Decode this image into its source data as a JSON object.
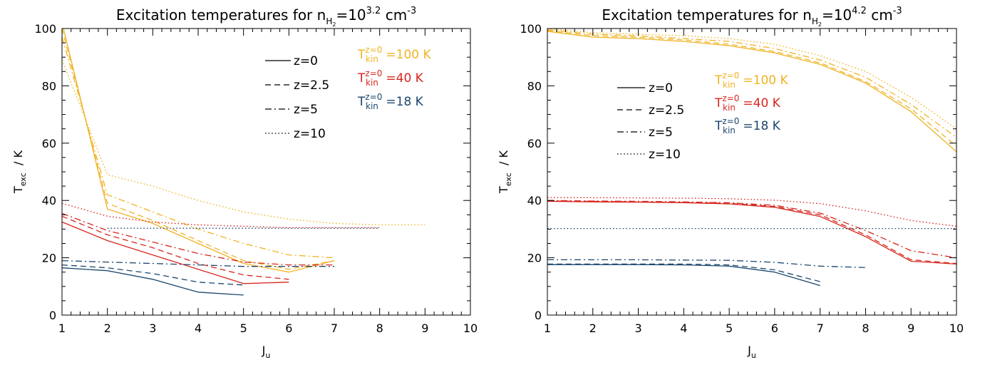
{
  "colors": {
    "T100": "#f0b323",
    "T40": "#d7261e",
    "T18": "#1c476e",
    "axis": "#000000"
  },
  "chart_data": [
    {
      "type": "line",
      "title": {
        "main": "Excitation temperatures for n",
        "sub": "H",
        "subsub": "2",
        "mid": "=10",
        "exp": "3.2",
        "unit": "cm",
        "unitexp": "-3"
      },
      "xlabel": {
        "main": "J",
        "sub": "u"
      },
      "ylabel": {
        "main": "T",
        "sub": "exc",
        "unit": "/ K"
      },
      "xlim": [
        1,
        10
      ],
      "ylim": [
        0,
        100
      ],
      "xticks": [
        "1",
        "2",
        "3",
        "4",
        "5",
        "6",
        "7",
        "8",
        "9",
        "10"
      ],
      "yticks": [
        "0",
        "20",
        "40",
        "60",
        "80",
        "100"
      ],
      "line_styles": [
        {
          "label": "z=0",
          "style": "solid"
        },
        {
          "label": "z=2.5",
          "style": "dashed"
        },
        {
          "label": "z=5",
          "style": "dashdot"
        },
        {
          "label": "z=10",
          "style": "dotted"
        }
      ],
      "kinetic_temperatures": [
        {
          "label": "T",
          "sub": "kin",
          "sup": "z=0",
          "value": "=100 K",
          "color_key": "T100"
        },
        {
          "label": "T",
          "sub": "kin",
          "sup": "z=0",
          "value": "=40 K",
          "color_key": "T40"
        },
        {
          "label": "T",
          "sub": "kin",
          "sup": "z=0",
          "value": "=18 K",
          "color_key": "T18"
        }
      ],
      "series": [
        {
          "tkin": 100,
          "z": 0,
          "style": "solid",
          "color_key": "T100",
          "x": [
            1,
            2,
            3,
            4,
            5,
            6,
            7
          ],
          "y": [
            102,
            37,
            32,
            25,
            18,
            15,
            19
          ]
        },
        {
          "tkin": 100,
          "z": 2.5,
          "style": "dashed",
          "color_key": "T100",
          "x": [
            1,
            2,
            3,
            4,
            5,
            6,
            7
          ],
          "y": [
            100,
            39,
            33,
            26,
            19,
            16,
            19
          ]
        },
        {
          "tkin": 100,
          "z": 5,
          "style": "dashdot",
          "color_key": "T100",
          "x": [
            1,
            2,
            3,
            4,
            5,
            6,
            7
          ],
          "y": [
            97,
            42,
            36,
            30,
            25,
            21,
            20
          ]
        },
        {
          "tkin": 100,
          "z": 10,
          "style": "dotted",
          "color_key": "T100",
          "x": [
            1,
            2,
            3,
            4,
            5,
            6,
            7,
            8,
            9
          ],
          "y": [
            89,
            49,
            45,
            40,
            36,
            33.5,
            32,
            31.5,
            31.5
          ]
        },
        {
          "tkin": 40,
          "z": 0,
          "style": "solid",
          "color_key": "T40",
          "x": [
            1,
            2,
            3,
            4,
            5,
            6
          ],
          "y": [
            32.5,
            26,
            21,
            16,
            11,
            11.5
          ]
        },
        {
          "tkin": 40,
          "z": 2.5,
          "style": "dashed",
          "color_key": "T40",
          "x": [
            1,
            2,
            3,
            4,
            5,
            6
          ],
          "y": [
            34.5,
            28,
            23.5,
            18,
            14,
            12.5
          ]
        },
        {
          "tkin": 40,
          "z": 5,
          "style": "dashdot",
          "color_key": "T40",
          "x": [
            1,
            2,
            3,
            4,
            5,
            6,
            7
          ],
          "y": [
            35.5,
            29.5,
            25.5,
            21.5,
            18.5,
            17.5,
            17.5
          ]
        },
        {
          "tkin": 40,
          "z": 10,
          "style": "dotted",
          "color_key": "T40",
          "x": [
            1,
            2,
            3,
            4,
            5,
            6,
            7,
            8
          ],
          "y": [
            39,
            34.5,
            32.5,
            31.5,
            31,
            30.5,
            30.5,
            30.5
          ]
        },
        {
          "tkin": 18,
          "z": 0,
          "style": "solid",
          "color_key": "T18",
          "x": [
            1,
            2,
            3,
            4,
            5
          ],
          "y": [
            16.5,
            15.5,
            12.5,
            8,
            7
          ]
        },
        {
          "tkin": 18,
          "z": 2.5,
          "style": "dashed",
          "color_key": "T18",
          "x": [
            1,
            2,
            3,
            4,
            5
          ],
          "y": [
            17.5,
            16.5,
            14.5,
            11.5,
            10.5
          ]
        },
        {
          "tkin": 18,
          "z": 5,
          "style": "dashdot",
          "color_key": "T18",
          "x": [
            1,
            2,
            3,
            4,
            5,
            6,
            7
          ],
          "y": [
            19,
            18.5,
            18,
            17.5,
            17,
            17,
            17
          ]
        },
        {
          "tkin": 18,
          "z": 10,
          "style": "dotted",
          "color_key": "T18",
          "x": [
            2,
            3,
            4,
            5,
            6,
            7,
            8
          ],
          "y": [
            30.3,
            30.3,
            30.3,
            30.3,
            30.3,
            30.3,
            30.3
          ]
        }
      ]
    },
    {
      "type": "line",
      "title": {
        "main": "Excitation temperatures for n",
        "sub": "H",
        "subsub": "2",
        "mid": "=10",
        "exp": "4.2",
        "unit": "cm",
        "unitexp": "-3"
      },
      "xlabel": {
        "main": "J",
        "sub": "u"
      },
      "ylabel": {
        "main": "T",
        "sub": "exc",
        "unit": "/ K"
      },
      "xlim": [
        1,
        10
      ],
      "ylim": [
        0,
        100
      ],
      "xticks": [
        "1",
        "2",
        "3",
        "4",
        "5",
        "6",
        "7",
        "8",
        "9",
        "10"
      ],
      "yticks": [
        "0",
        "20",
        "40",
        "60",
        "80",
        "100"
      ],
      "line_styles": [
        {
          "label": "z=0",
          "style": "solid"
        },
        {
          "label": "z=2.5",
          "style": "dashed"
        },
        {
          "label": "z=5",
          "style": "dashdot"
        },
        {
          "label": "z=10",
          "style": "dotted"
        }
      ],
      "kinetic_temperatures": [
        {
          "label": "T",
          "sub": "kin",
          "sup": "z=0",
          "value": "=100 K",
          "color_key": "T100"
        },
        {
          "label": "T",
          "sub": "kin",
          "sup": "z=0",
          "value": "=40 K",
          "color_key": "T40"
        },
        {
          "label": "T",
          "sub": "kin",
          "sup": "z=0",
          "value": "=18 K",
          "color_key": "T18"
        }
      ],
      "series": [
        {
          "tkin": 100,
          "z": 0,
          "style": "solid",
          "color_key": "T100",
          "x": [
            1,
            2,
            3,
            4,
            5,
            6,
            7,
            8,
            9,
            10
          ],
          "y": [
            99,
            97,
            96.5,
            95.5,
            94,
            91.5,
            87.5,
            81,
            71,
            57
          ]
        },
        {
          "tkin": 100,
          "z": 2.5,
          "style": "dashed",
          "color_key": "T100",
          "x": [
            1,
            2,
            3,
            4,
            5,
            6,
            7,
            8,
            9,
            10
          ],
          "y": [
            99.3,
            97.5,
            97,
            96,
            94.5,
            92,
            88,
            81.5,
            72,
            59
          ]
        },
        {
          "tkin": 100,
          "z": 5,
          "style": "dashdot",
          "color_key": "T100",
          "x": [
            1,
            2,
            3,
            4,
            5,
            6,
            7,
            8,
            9,
            10
          ],
          "y": [
            99.6,
            98,
            97.5,
            96.5,
            95.5,
            93,
            89,
            83,
            73.5,
            62
          ]
        },
        {
          "tkin": 100,
          "z": 10,
          "style": "dotted",
          "color_key": "T100",
          "x": [
            1,
            2,
            3,
            4,
            5,
            6,
            7,
            8,
            9,
            10
          ],
          "y": [
            100,
            98.5,
            98,
            97.5,
            96.5,
            94.5,
            90.5,
            85,
            76,
            65
          ]
        },
        {
          "tkin": 40,
          "z": 0,
          "style": "solid",
          "color_key": "T40",
          "x": [
            1,
            2,
            3,
            4,
            5,
            6,
            7,
            8,
            9,
            10
          ],
          "y": [
            39.7,
            39.5,
            39.4,
            39.2,
            38.8,
            37.6,
            34.4,
            27.4,
            18.8,
            17.8
          ]
        },
        {
          "tkin": 40,
          "z": 2.5,
          "style": "dashed",
          "color_key": "T40",
          "x": [
            1,
            2,
            3,
            4,
            5,
            6,
            7,
            8,
            9,
            10
          ],
          "y": [
            39.8,
            39.7,
            39.5,
            39.3,
            39,
            37.9,
            35,
            28,
            19.3,
            18
          ]
        },
        {
          "tkin": 40,
          "z": 5,
          "style": "dashdot",
          "color_key": "T40",
          "x": [
            1,
            2,
            3,
            4,
            5,
            6,
            7,
            8,
            9,
            10
          ],
          "y": [
            40,
            39.8,
            39.7,
            39.5,
            39.2,
            38.3,
            35.6,
            29.5,
            22.5,
            20
          ]
        },
        {
          "tkin": 40,
          "z": 10,
          "style": "dotted",
          "color_key": "T40",
          "x": [
            1,
            2,
            3,
            4,
            5,
            6,
            7,
            8,
            9,
            10
          ],
          "y": [
            41,
            41,
            40.9,
            40.8,
            40.6,
            40.1,
            38.9,
            36.4,
            33,
            31
          ]
        },
        {
          "tkin": 18,
          "z": 0,
          "style": "solid",
          "color_key": "T18",
          "x": [
            1,
            2,
            3,
            4,
            5,
            6,
            7
          ],
          "y": [
            17.6,
            17.6,
            17.6,
            17.5,
            17.1,
            15,
            10.3
          ]
        },
        {
          "tkin": 18,
          "z": 2.5,
          "style": "dashed",
          "color_key": "T18",
          "x": [
            1,
            2,
            3,
            4,
            5,
            6,
            7
          ],
          "y": [
            17.8,
            17.8,
            17.8,
            17.8,
            17.5,
            15.8,
            11.7
          ]
        },
        {
          "tkin": 18,
          "z": 5,
          "style": "dashdot",
          "color_key": "T18",
          "x": [
            1,
            2,
            3,
            4,
            5,
            6,
            7,
            8
          ],
          "y": [
            19.3,
            19.3,
            19.3,
            19.2,
            19.1,
            18.4,
            17.1,
            16.6
          ]
        },
        {
          "tkin": 18,
          "z": 10,
          "style": "dotted",
          "color_key": "T18",
          "x": [
            1,
            2,
            3,
            4,
            5,
            6,
            7,
            8,
            9,
            10
          ],
          "y": [
            30.2,
            30.2,
            30.2,
            30.2,
            30.2,
            30.2,
            30.2,
            30.2,
            30.2,
            30.2
          ]
        }
      ]
    }
  ]
}
